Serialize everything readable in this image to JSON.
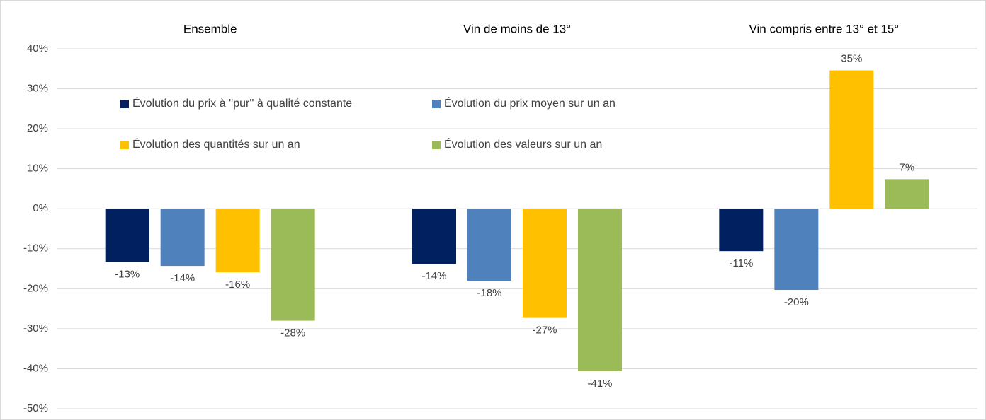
{
  "chart_data": {
    "type": "bar",
    "categories": [
      "Ensemble",
      "Vin de moins de 13°",
      "Vin compris entre 13° et 15°"
    ],
    "series": [
      {
        "name": "Évolution du prix à  ''pur'' à qualité constante",
        "color": "#002060",
        "values": [
          -13.3,
          -13.8,
          -10.6
        ],
        "value_labels": [
          "-13%",
          "-14%",
          "-11%"
        ]
      },
      {
        "name": "Évolution du prix moyen sur un an",
        "color": "#4f81bd",
        "values": [
          -14.3,
          -18.0,
          -20.3
        ],
        "value_labels": [
          "-14%",
          "-18%",
          "-20%"
        ]
      },
      {
        "name": "Évolution des quantités sur un an",
        "color": "#ffc000",
        "values": [
          -15.9,
          -27.3,
          34.6
        ],
        "value_labels": [
          "-16%",
          "-27%",
          "35%"
        ]
      },
      {
        "name": "Évolution des valeurs sur un an",
        "color": "#9bbb59",
        "values": [
          -28.0,
          -40.6,
          7.4
        ],
        "value_labels": [
          "-28%",
          "-41%",
          "7%"
        ]
      }
    ],
    "ylim": [
      -50,
      40
    ],
    "yticks": [
      {
        "value": -50,
        "label": "-50%"
      },
      {
        "value": -40,
        "label": "-40%"
      },
      {
        "value": -30,
        "label": "-30%"
      },
      {
        "value": -20,
        "label": "-20%"
      },
      {
        "value": -10,
        "label": "-10%"
      },
      {
        "value": 0,
        "label": "0%"
      },
      {
        "value": 10,
        "label": "10%"
      },
      {
        "value": 20,
        "label": "20%"
      },
      {
        "value": 30,
        "label": "30%"
      },
      {
        "value": 40,
        "label": "40%"
      }
    ],
    "grid": true,
    "legend": "upper left"
  }
}
